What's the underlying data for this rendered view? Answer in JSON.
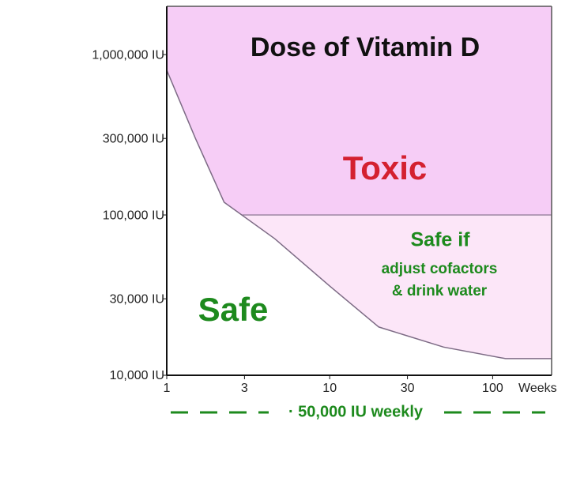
{
  "chart_data": {
    "type": "area",
    "title": "Dose of Vitamin D",
    "xlabel": "Weeks",
    "log_x": true,
    "log_y": true,
    "x": [
      1,
      1.5,
      2.25,
      4.6,
      10,
      20,
      50,
      120,
      230
    ],
    "values": [
      800000,
      300000,
      120000,
      71000,
      36000,
      20000,
      15000,
      12700,
      12700
    ],
    "threshold": 100000,
    "xlim": [
      1,
      230
    ],
    "ylim": [
      10000,
      2000000
    ],
    "xticks": [
      1,
      3,
      10,
      30,
      100
    ],
    "yticks": [
      {
        "value": 10000,
        "label": "10,000 IU"
      },
      {
        "value": 30000,
        "label": "30,000 IU"
      },
      {
        "value": 100000,
        "label": "100,000 IU"
      },
      {
        "value": 300000,
        "label": "300,000 IU"
      },
      {
        "value": 1000000,
        "label": "1,000,000 IU"
      }
    ],
    "curve_color": "#7d6b85",
    "toxic_color": "#f6cdf6",
    "caution_color": "#fce6f8",
    "safe_color": "#ffffff",
    "toxic_label": "Toxic",
    "toxic_label_color": "#d42030",
    "caution_label": "Safe if",
    "caution_notes": [
      "adjust cofactors",
      "& drink water"
    ],
    "safe_label": "Safe",
    "safe_label_color": "#1d8a1d",
    "footnote": "· 50,000 IU weekly"
  }
}
